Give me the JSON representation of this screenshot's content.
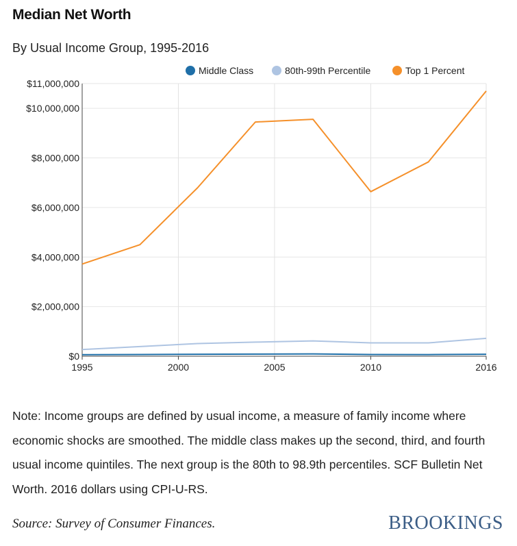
{
  "header": {
    "title": "Median Net Worth",
    "subtitle": "By Usual Income Group, 1995-2016"
  },
  "footer": {
    "note": "Note: Income groups are defined by usual income, a measure of family income where economic shocks are smoothed. The middle class makes up the second, third, and fourth usual income quintiles. The next group is the 80th to 98.9th percentiles. SCF Bulletin Net Worth. 2016 dollars using CPI-U-RS.",
    "source": "Source: Survey of Consumer Finances.",
    "logo": "BROOKINGS"
  },
  "chart_data": {
    "type": "line",
    "title": "Median Net Worth",
    "subtitle": "By Usual Income Group, 1995-2016",
    "xlabel": "",
    "ylabel": "",
    "x": [
      1995,
      1998,
      2001,
      2004,
      2007,
      2010,
      2013,
      2016
    ],
    "xlim": [
      1995,
      2016
    ],
    "ylim": [
      0,
      11000000
    ],
    "x_ticks": [
      1995,
      2000,
      2005,
      2010,
      2016
    ],
    "y_ticks": [
      0,
      2000000,
      4000000,
      6000000,
      8000000,
      10000000,
      11000000
    ],
    "y_tick_labels": [
      "$0",
      "$2,000,000",
      "$4,000,000",
      "$6,000,000",
      "$8,000,000",
      "$10,000,000",
      "$11,000,000"
    ],
    "grid": true,
    "legend_position": "top",
    "series": [
      {
        "name": "Middle Class",
        "color": "#1f6fa8",
        "values": [
          60000,
          70000,
          80000,
          85000,
          95000,
          70000,
          65000,
          80000
        ]
      },
      {
        "name": "80th-99th Percentile",
        "color": "#aec4e2",
        "values": [
          270000,
          390000,
          510000,
          570000,
          620000,
          540000,
          540000,
          720000
        ]
      },
      {
        "name": "Top 1 Percent",
        "color": "#f5902a",
        "values": [
          3720000,
          4500000,
          6800000,
          9450000,
          9560000,
          6640000,
          7840000,
          10700000
        ]
      }
    ]
  }
}
